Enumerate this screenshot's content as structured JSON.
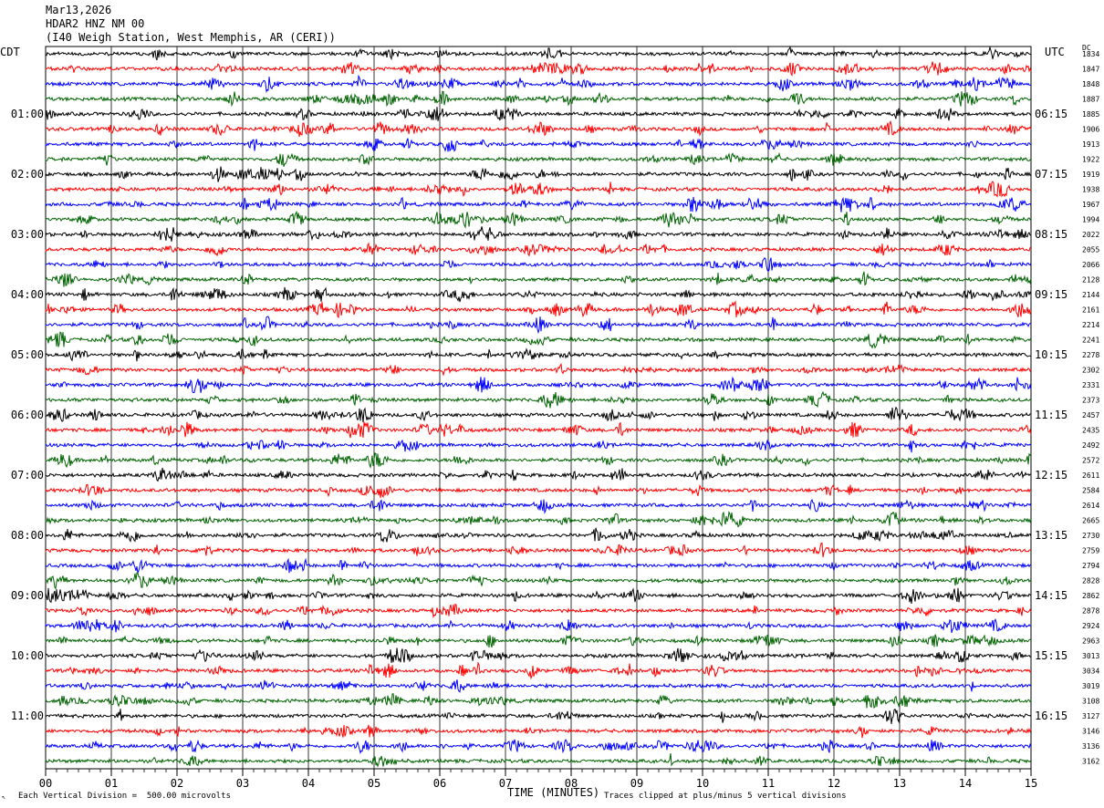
{
  "header": {
    "date": "Mar13,2026",
    "station": "HDAR2 HNZ NM 00",
    "location": "(I40 Weigh Station, West Memphis, AR (CERI))"
  },
  "labels": {
    "left_tz": "CDT",
    "right_tz": "UTC",
    "dc": "DC",
    "x_title": "TIME (MINUTES)",
    "scale_note": "Each Vertical Division =  500.00 microvolts",
    "clip_note": "Traces clipped at plus/minus 5 vertical divisions"
  },
  "colors": {
    "trace_cycle": [
      "#000000",
      "#ff0000",
      "#0000ff",
      "#006400"
    ],
    "grid": "#000000"
  },
  "chart_data": {
    "type": "line",
    "title": "HDAR2 HNZ NM 00",
    "xlabel": "TIME (MINUTES)",
    "xlim": [
      0,
      15
    ],
    "x_ticks": [
      "00",
      "01",
      "02",
      "03",
      "04",
      "05",
      "06",
      "07",
      "08",
      "09",
      "10",
      "11",
      "12",
      "13",
      "14",
      "15"
    ],
    "left_hour_labels": [
      "01:00",
      "02:00",
      "03:00",
      "04:00",
      "05:00",
      "06:00",
      "07:00",
      "08:00",
      "09:00",
      "10:00",
      "11:00"
    ],
    "right_hour_labels": [
      "06:15",
      "07:15",
      "08:15",
      "09:15",
      "10:15",
      "11:15",
      "12:15",
      "13:15",
      "14:15",
      "15:15",
      "16:15"
    ],
    "trace_count": 48,
    "dc_offsets": [
      1834,
      1847,
      1848,
      1887,
      1885,
      1906,
      1913,
      1922,
      1919,
      1938,
      1967,
      1994,
      2022,
      2055,
      2066,
      2128,
      2144,
      2161,
      2214,
      2241,
      2278,
      2302,
      2331,
      2373,
      2457,
      2435,
      2492,
      2572,
      2611,
      2584,
      2614,
      2665,
      2730,
      2759,
      2794,
      2828,
      2862,
      2878,
      2924,
      2963,
      3013,
      3034,
      3019,
      3108,
      3127,
      3146,
      3136,
      3162
    ]
  }
}
